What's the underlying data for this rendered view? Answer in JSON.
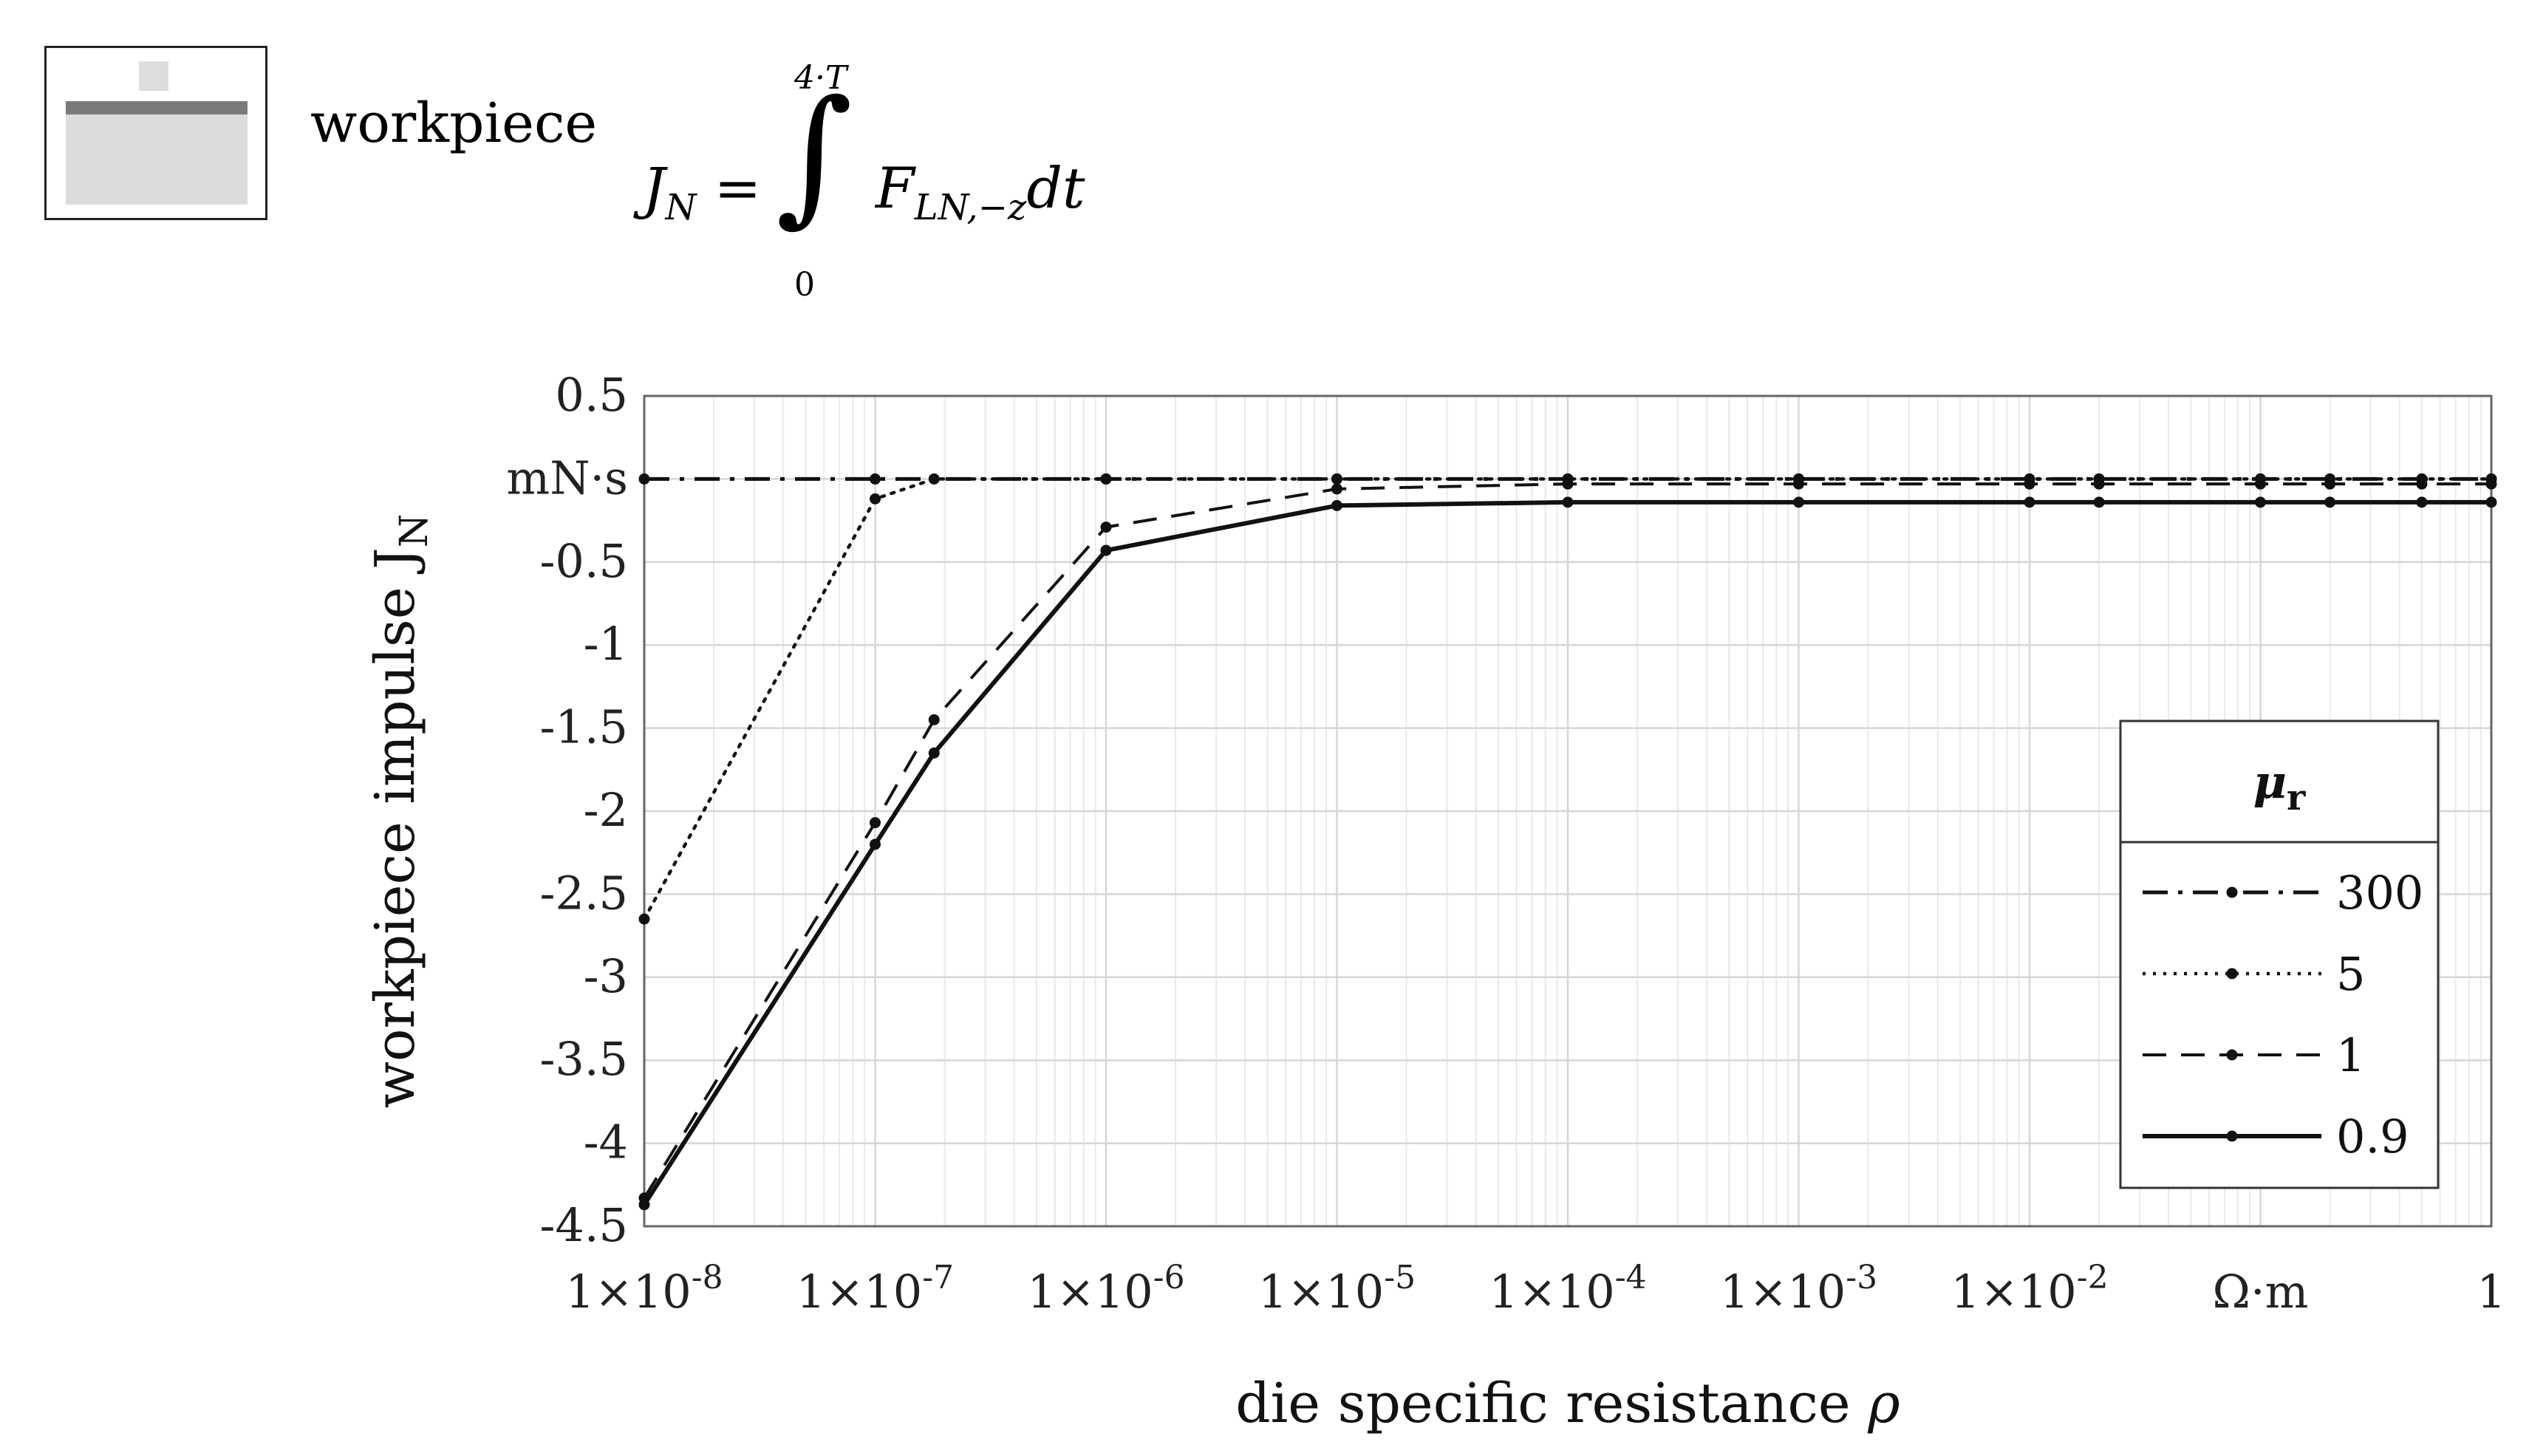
{
  "header": {
    "workpiece_label": "workpiece",
    "formula": {
      "lhs": "J",
      "lhs_sub": "N",
      "equals": "=",
      "upper_limit": "4·T",
      "lower_limit": "0",
      "integrand": "F",
      "integrand_sub": "LN,−z",
      "differential": "dt"
    }
  },
  "chart_data": {
    "type": "line",
    "xscale": "log",
    "xlim": [
      1e-08,
      1
    ],
    "ylim": [
      -4.5,
      0.5
    ],
    "xlabel": "die specific resistance",
    "xlabel_symbol": "ρ",
    "ylabel": "workpiece impulse J",
    "ylabel_sub": "N",
    "y_unit_tick": "mN·s",
    "x_unit_tick": "Ω·m",
    "x_ticks": [
      {
        "value": 1e-08,
        "label": "1×10",
        "exp": "-8"
      },
      {
        "value": 1e-07,
        "label": "1×10",
        "exp": "-7"
      },
      {
        "value": 1e-06,
        "label": "1×10",
        "exp": "-6"
      },
      {
        "value": 1e-05,
        "label": "1×10",
        "exp": "-5"
      },
      {
        "value": 0.0001,
        "label": "1×10",
        "exp": "-4"
      },
      {
        "value": 0.001,
        "label": "1×10",
        "exp": "-3"
      },
      {
        "value": 0.01,
        "label": "1×10",
        "exp": "-2"
      },
      {
        "value": 0.1,
        "label": "Ω·m",
        "exp": ""
      },
      {
        "value": 1,
        "label": "1",
        "exp": ""
      }
    ],
    "y_ticks": [
      {
        "value": 0.5,
        "label": "0.5"
      },
      {
        "value": 0,
        "label": "mN·s"
      },
      {
        "value": -0.5,
        "label": "-0.5"
      },
      {
        "value": -1,
        "label": "-1"
      },
      {
        "value": -1.5,
        "label": "-1.5"
      },
      {
        "value": -2,
        "label": "-2"
      },
      {
        "value": -2.5,
        "label": "-2.5"
      },
      {
        "value": -3,
        "label": "-3"
      },
      {
        "value": -3.5,
        "label": "-3.5"
      },
      {
        "value": -4,
        "label": "-4"
      },
      {
        "value": -4.5,
        "label": "-4.5"
      }
    ],
    "grid": true,
    "legend": {
      "title": "μ",
      "title_sub": "r",
      "position": "right"
    },
    "series": [
      {
        "name": "300",
        "style": "dashdot",
        "x": [
          1e-08,
          1e-07,
          1e-06,
          1e-05,
          0.0001,
          0.001,
          0.01,
          0.02,
          0.1,
          0.2,
          0.5,
          1
        ],
        "y": [
          0,
          0,
          0,
          0,
          0,
          0,
          0,
          0,
          0,
          0,
          0,
          0
        ]
      },
      {
        "name": "5",
        "style": "dotted",
        "x": [
          1e-08,
          1e-07,
          1.8e-07,
          1e-06,
          1e-05,
          0.0001,
          0.001,
          0.01,
          0.02,
          0.1,
          0.2,
          0.5,
          1
        ],
        "y": [
          -2.65,
          -0.12,
          0,
          0,
          0,
          0,
          0,
          0,
          0,
          0,
          0,
          0,
          0
        ]
      },
      {
        "name": "1",
        "style": "dashed",
        "x": [
          1e-08,
          1e-07,
          1.8e-07,
          1e-06,
          1e-05,
          0.0001,
          0.001,
          0.01,
          0.02,
          0.1,
          0.2,
          0.5,
          1
        ],
        "y": [
          -4.33,
          -2.07,
          -1.45,
          -0.29,
          -0.06,
          -0.03,
          -0.03,
          -0.03,
          -0.03,
          -0.03,
          -0.03,
          -0.03,
          -0.03
        ]
      },
      {
        "name": "0.9",
        "style": "solid",
        "x": [
          1e-08,
          1e-07,
          1.8e-07,
          1e-06,
          1e-05,
          0.0001,
          0.001,
          0.01,
          0.02,
          0.1,
          0.2,
          0.5,
          1
        ],
        "y": [
          -4.37,
          -2.2,
          -1.65,
          -0.43,
          -0.16,
          -0.14,
          -0.14,
          -0.14,
          -0.14,
          -0.14,
          -0.14,
          -0.14,
          -0.14
        ]
      }
    ]
  }
}
